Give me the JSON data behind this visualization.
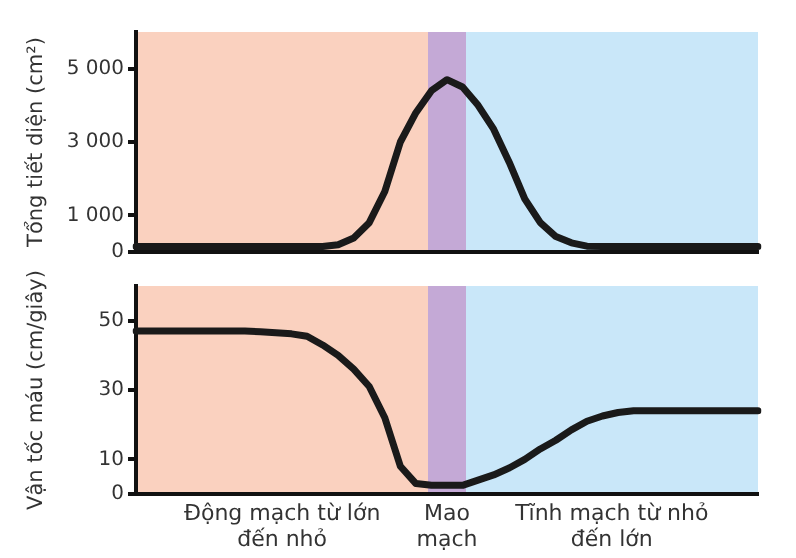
{
  "chart_data": [
    {
      "type": "line",
      "ylabel": "Tổng tiết diện (cm²)",
      "ylim": [
        0,
        6000
      ],
      "yticks": [
        0,
        {
          "value": 1000,
          "label": "1 000"
        },
        {
          "value": 3000,
          "label": "3 000"
        },
        {
          "value": 5000,
          "label": "5 000"
        }
      ],
      "tick_labels": "y",
      "grid": false,
      "legend": false,
      "marker": "none",
      "line_style": "solid",
      "categories": [
        null,
        null,
        null,
        null,
        null,
        null,
        null,
        null,
        null,
        null,
        null,
        null,
        null,
        null,
        null,
        null,
        null,
        null,
        null,
        null,
        null,
        null,
        null,
        null,
        null,
        null,
        null,
        null,
        null,
        null,
        null,
        null,
        null,
        null,
        null,
        null,
        null,
        null,
        null,
        null,
        null
      ],
      "series": [
        {
          "color": "#1a1a1a",
          "values": [
            150,
            150,
            150,
            150,
            150,
            150,
            150,
            150,
            150,
            150,
            150,
            150,
            150,
            200,
            380,
            800,
            1650,
            3000,
            3800,
            4400,
            4700,
            4500,
            4000,
            3350,
            2450,
            1450,
            800,
            420,
            250,
            160,
            150,
            150,
            150,
            150,
            150,
            150,
            150,
            150,
            150,
            150,
            150
          ]
        }
      ]
    },
    {
      "type": "line",
      "ylabel": "Vận tốc máu (cm/giây)",
      "ylim": [
        0,
        60
      ],
      "yticks": [
        0,
        10,
        30,
        50
      ],
      "tick_labels": "y",
      "grid": false,
      "legend": false,
      "marker": "none",
      "line_style": "solid",
      "categories": [
        null,
        null,
        null,
        null,
        null,
        null,
        null,
        null,
        null,
        null,
        null,
        null,
        null,
        null,
        null,
        null,
        null,
        null,
        null,
        null,
        null,
        null,
        null,
        null,
        null,
        null,
        null,
        null,
        null,
        null,
        null,
        null,
        null,
        null,
        null,
        null,
        null,
        null,
        null,
        null,
        null
      ],
      "series": [
        {
          "color": "#1a1a1a",
          "values": [
            47,
            47,
            47,
            47,
            47,
            47,
            47,
            47,
            46.8,
            46.5,
            46.2,
            45.5,
            43,
            40,
            36,
            31,
            22,
            8,
            3,
            2.5,
            2.5,
            2.5,
            4,
            5.5,
            7.5,
            10,
            13,
            15.5,
            18.5,
            21,
            22.5,
            23.5,
            24,
            24,
            24,
            24,
            24,
            24,
            24,
            24,
            24
          ]
        }
      ],
      "annotations": [
        "Động mạch từ lớn đến nhỏ",
        "Mao mạch",
        "Tĩnh mạch từ nhỏ đến lớn"
      ]
    }
  ]
}
